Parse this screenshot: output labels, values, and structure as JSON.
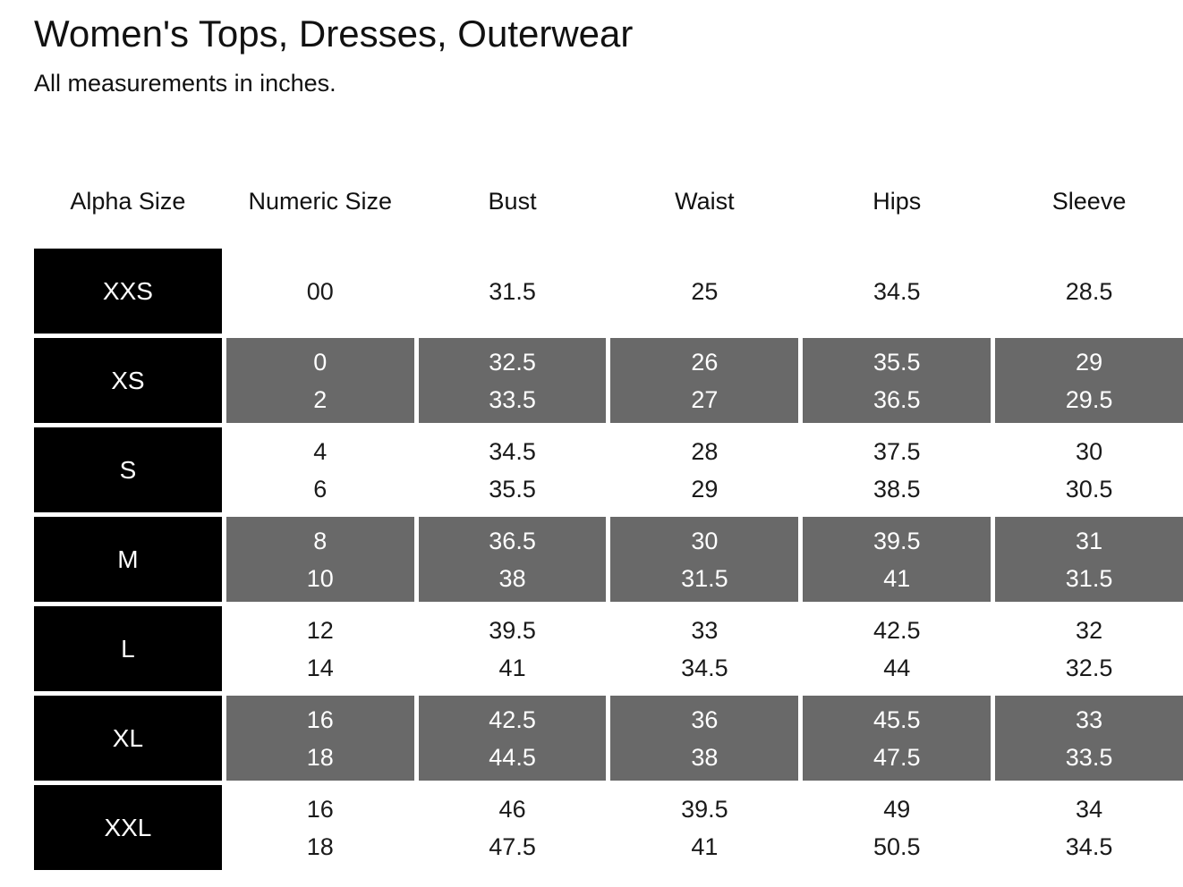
{
  "page": {
    "title": "Women's Tops, Dresses, Outerwear",
    "subtitle": "All measurements in inches."
  },
  "colors": {
    "alpha_cell_bg": "#000000",
    "shaded_cell_bg": "#696969",
    "light_text": "#ffffff",
    "dark_text": "#111111",
    "background": "#ffffff"
  },
  "table": {
    "headers": [
      "Alpha Size",
      "Numeric Size",
      "Bust",
      "Waist",
      "Hips",
      "Sleeve"
    ],
    "rows": [
      {
        "alpha": "XXS",
        "shaded": false,
        "numeric": [
          "00"
        ],
        "bust": [
          "31.5"
        ],
        "waist": [
          "25"
        ],
        "hips": [
          "34.5"
        ],
        "sleeve": [
          "28.5"
        ]
      },
      {
        "alpha": "XS",
        "shaded": true,
        "numeric": [
          "0",
          "2"
        ],
        "bust": [
          "32.5",
          "33.5"
        ],
        "waist": [
          "26",
          "27"
        ],
        "hips": [
          "35.5",
          "36.5"
        ],
        "sleeve": [
          "29",
          "29.5"
        ]
      },
      {
        "alpha": "S",
        "shaded": false,
        "numeric": [
          "4",
          "6"
        ],
        "bust": [
          "34.5",
          "35.5"
        ],
        "waist": [
          "28",
          "29"
        ],
        "hips": [
          "37.5",
          "38.5"
        ],
        "sleeve": [
          "30",
          "30.5"
        ]
      },
      {
        "alpha": "M",
        "shaded": true,
        "numeric": [
          "8",
          "10"
        ],
        "bust": [
          "36.5",
          "38"
        ],
        "waist": [
          "30",
          "31.5"
        ],
        "hips": [
          "39.5",
          "41"
        ],
        "sleeve": [
          "31",
          "31.5"
        ]
      },
      {
        "alpha": "L",
        "shaded": false,
        "numeric": [
          "12",
          "14"
        ],
        "bust": [
          "39.5",
          "41"
        ],
        "waist": [
          "33",
          "34.5"
        ],
        "hips": [
          "42.5",
          "44"
        ],
        "sleeve": [
          "32",
          "32.5"
        ]
      },
      {
        "alpha": "XL",
        "shaded": true,
        "numeric": [
          "16",
          "18"
        ],
        "bust": [
          "42.5",
          "44.5"
        ],
        "waist": [
          "36",
          "38"
        ],
        "hips": [
          "45.5",
          "47.5"
        ],
        "sleeve": [
          "33",
          "33.5"
        ]
      },
      {
        "alpha": "XXL",
        "shaded": false,
        "numeric": [
          "16",
          "18"
        ],
        "bust": [
          "46",
          "47.5"
        ],
        "waist": [
          "39.5",
          "41"
        ],
        "hips": [
          "49",
          "50.5"
        ],
        "sleeve": [
          "34",
          "34.5"
        ]
      }
    ]
  },
  "chart_data": {
    "type": "table",
    "title": "Women's Tops, Dresses, Outerwear",
    "note": "All measurements in inches.",
    "columns": [
      "Alpha Size",
      "Numeric Size",
      "Bust",
      "Waist",
      "Hips",
      "Sleeve"
    ],
    "rows": [
      [
        "XXS",
        "00",
        "31.5",
        "25",
        "34.5",
        "28.5"
      ],
      [
        "XS",
        "0 / 2",
        "32.5 / 33.5",
        "26 / 27",
        "35.5 / 36.5",
        "29 / 29.5"
      ],
      [
        "S",
        "4 / 6",
        "34.5 / 35.5",
        "28 / 29",
        "37.5 / 38.5",
        "30 / 30.5"
      ],
      [
        "M",
        "8 / 10",
        "36.5 / 38",
        "30 / 31.5",
        "39.5 / 41",
        "31 / 31.5"
      ],
      [
        "L",
        "12 / 14",
        "39.5 / 41",
        "33 / 34.5",
        "42.5 / 44",
        "32 / 32.5"
      ],
      [
        "XL",
        "16 / 18",
        "42.5 / 44.5",
        "36 / 38",
        "45.5 / 47.5",
        "33 / 33.5"
      ],
      [
        "XXL",
        "16 / 18",
        "46 / 47.5",
        "39.5 / 41",
        "49 / 50.5",
        "34 / 34.5"
      ]
    ]
  }
}
